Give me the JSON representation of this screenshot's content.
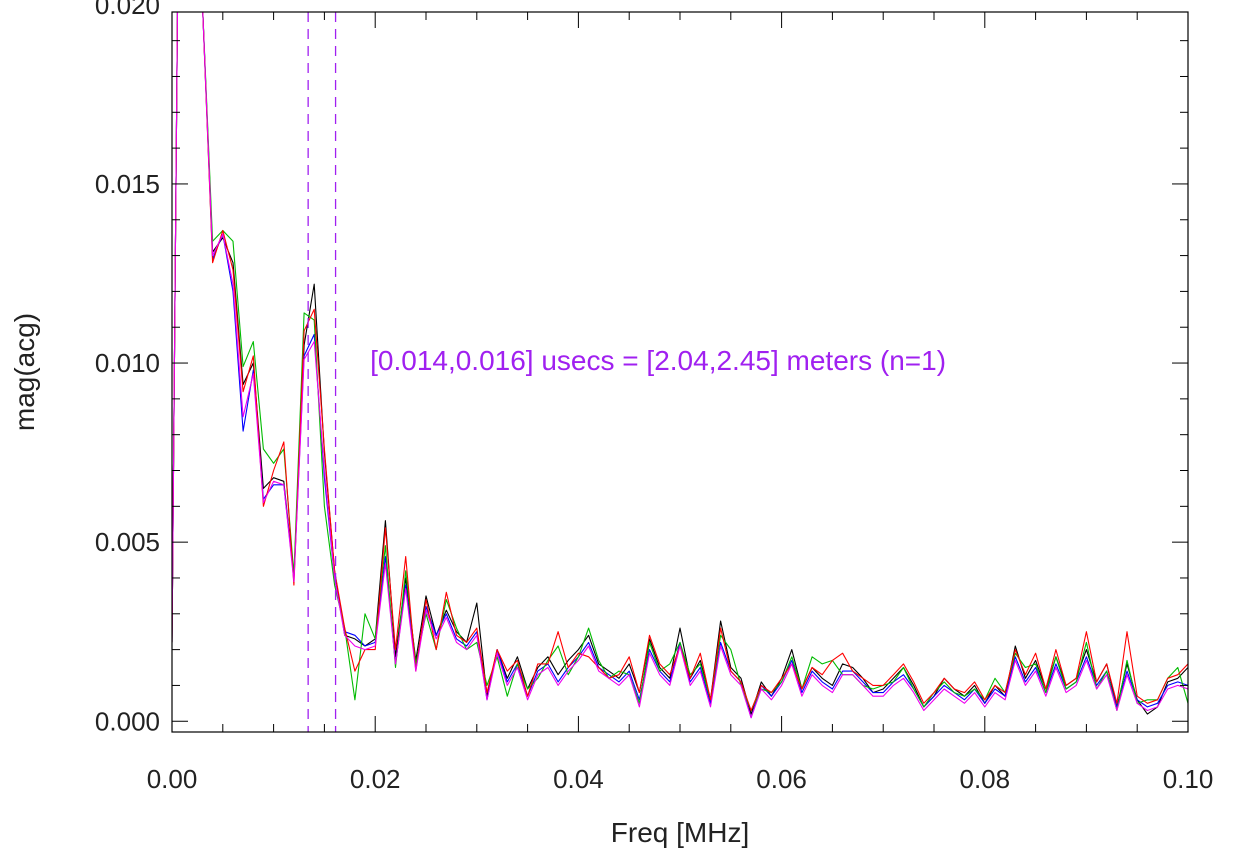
{
  "chart_data": {
    "type": "line",
    "title": "",
    "xlabel": "Freq [MHz]",
    "ylabel": "mag(acg)",
    "xlim": [
      0.0,
      0.1
    ],
    "ylim": [
      -0.0003,
      0.0198
    ],
    "x_ticks": [
      "0.00",
      "0.02",
      "0.04",
      "0.06",
      "0.08",
      "0.10"
    ],
    "y_ticks": [
      "0.000",
      "0.005",
      "0.010",
      "0.015",
      "0.020"
    ],
    "x_tick_values": [
      0.0,
      0.02,
      0.04,
      0.06,
      0.08,
      0.1
    ],
    "y_tick_values": [
      0.0,
      0.005,
      0.01,
      0.015,
      0.02
    ],
    "x_minor_step": 0.005,
    "y_minor_step": 0.001,
    "grid": false,
    "legend": "none",
    "annotation": {
      "text": "[0.014,0.016] usecs = [2.04,2.45] meters (n=1)",
      "color": "#a020f0",
      "x": 0.0195,
      "y": 0.0098
    },
    "vlines": [
      {
        "x": 0.0134,
        "color": "#a020f0",
        "style": "dashed"
      },
      {
        "x": 0.0161,
        "color": "#a020f0",
        "style": "dashed"
      }
    ],
    "x": [
      0.0,
      0.001,
      0.002,
      0.003,
      0.004,
      0.005,
      0.006,
      0.007,
      0.008,
      0.009,
      0.01,
      0.011,
      0.012,
      0.013,
      0.014,
      0.015,
      0.016,
      0.017,
      0.018,
      0.019,
      0.02,
      0.021,
      0.022,
      0.023,
      0.024,
      0.025,
      0.026,
      0.027,
      0.028,
      0.029,
      0.03,
      0.031,
      0.032,
      0.033,
      0.034,
      0.035,
      0.036,
      0.037,
      0.038,
      0.039,
      0.04,
      0.041,
      0.042,
      0.043,
      0.044,
      0.045,
      0.046,
      0.047,
      0.048,
      0.049,
      0.05,
      0.051,
      0.052,
      0.053,
      0.054,
      0.055,
      0.056,
      0.057,
      0.058,
      0.059,
      0.06,
      0.061,
      0.062,
      0.063,
      0.064,
      0.065,
      0.066,
      0.067,
      0.068,
      0.069,
      0.07,
      0.071,
      0.072,
      0.073,
      0.074,
      0.075,
      0.076,
      0.077,
      0.078,
      0.079,
      0.08,
      0.081,
      0.082,
      0.083,
      0.084,
      0.085,
      0.086,
      0.087,
      0.088,
      0.089,
      0.09,
      0.091,
      0.092,
      0.093,
      0.094,
      0.095,
      0.096,
      0.097,
      0.098,
      0.099,
      0.1
    ],
    "series": [
      {
        "color": "#000000",
        "values": [
          0.0022,
          0.035,
          0.026,
          0.02,
          0.0131,
          0.0135,
          0.0128,
          0.0094,
          0.01,
          0.0065,
          0.0068,
          0.0067,
          0.004,
          0.0105,
          0.0122,
          0.0075,
          0.0042,
          0.0024,
          0.0023,
          0.0021,
          0.0023,
          0.0056,
          0.0018,
          0.004,
          0.0017,
          0.0035,
          0.0024,
          0.0031,
          0.0025,
          0.0022,
          0.0033,
          0.0007,
          0.002,
          0.0012,
          0.0018,
          0.0009,
          0.0015,
          0.0018,
          0.0013,
          0.0017,
          0.002,
          0.0024,
          0.0016,
          0.0014,
          0.0012,
          0.0016,
          0.0008,
          0.0023,
          0.0015,
          0.0012,
          0.0026,
          0.0012,
          0.0017,
          0.0006,
          0.0028,
          0.0015,
          0.0012,
          0.0002,
          0.0011,
          0.0007,
          0.0012,
          0.002,
          0.0009,
          0.0015,
          0.0012,
          0.001,
          0.0016,
          0.0015,
          0.0012,
          0.0008,
          0.0009,
          0.0012,
          0.0015,
          0.001,
          0.0004,
          0.0007,
          0.0012,
          0.0009,
          0.0007,
          0.001,
          0.0005,
          0.001,
          0.0007,
          0.0021,
          0.0012,
          0.0017,
          0.0009,
          0.0018,
          0.001,
          0.0012,
          0.002,
          0.0011,
          0.0016,
          0.0004,
          0.0016,
          0.0006,
          0.0002,
          0.0004,
          0.0011,
          0.0012,
          0.0015
        ]
      },
      {
        "color": "#0000ff",
        "values": [
          0.0022,
          0.035,
          0.026,
          0.02,
          0.0129,
          0.0136,
          0.012,
          0.0081,
          0.0098,
          0.0062,
          0.0066,
          0.0066,
          0.004,
          0.0102,
          0.0108,
          0.0068,
          0.004,
          0.0025,
          0.0024,
          0.0021,
          0.0022,
          0.0046,
          0.0016,
          0.0038,
          0.0015,
          0.0032,
          0.0024,
          0.003,
          0.0023,
          0.0021,
          0.0025,
          0.0006,
          0.002,
          0.0011,
          0.0016,
          0.0007,
          0.0014,
          0.0016,
          0.0011,
          0.0015,
          0.0018,
          0.0022,
          0.0015,
          0.0013,
          0.0011,
          0.0014,
          0.0006,
          0.002,
          0.0014,
          0.0011,
          0.0022,
          0.0011,
          0.0015,
          0.0005,
          0.0022,
          0.0014,
          0.0011,
          0.0001,
          0.001,
          0.0007,
          0.0011,
          0.0017,
          0.0008,
          0.0014,
          0.0011,
          0.0009,
          0.0014,
          0.0014,
          0.0011,
          0.0008,
          0.0008,
          0.0011,
          0.0013,
          0.0009,
          0.0004,
          0.0007,
          0.001,
          0.0008,
          0.0006,
          0.0009,
          0.0005,
          0.0009,
          0.0007,
          0.0018,
          0.0011,
          0.0015,
          0.0008,
          0.0016,
          0.0009,
          0.0011,
          0.0018,
          0.001,
          0.0014,
          0.0004,
          0.0014,
          0.0006,
          0.0004,
          0.0005,
          0.001,
          0.0011,
          0.001
        ]
      },
      {
        "color": "#00bb00",
        "values": [
          0.0022,
          0.035,
          0.026,
          0.02,
          0.0134,
          0.0137,
          0.0134,
          0.0099,
          0.0106,
          0.0076,
          0.0072,
          0.0076,
          0.0041,
          0.0114,
          0.0112,
          0.006,
          0.0038,
          0.0026,
          0.0006,
          0.003,
          0.0023,
          0.0049,
          0.0015,
          0.0042,
          0.0016,
          0.003,
          0.002,
          0.0034,
          0.0026,
          0.002,
          0.0022,
          0.001,
          0.0018,
          0.0007,
          0.0016,
          0.0009,
          0.0012,
          0.0017,
          0.0021,
          0.0013,
          0.0018,
          0.0026,
          0.0017,
          0.0012,
          0.0014,
          0.0013,
          0.0005,
          0.0022,
          0.0014,
          0.0016,
          0.0022,
          0.0013,
          0.0016,
          0.0006,
          0.0024,
          0.002,
          0.001,
          0.0003,
          0.0009,
          0.0008,
          0.0011,
          0.0018,
          0.0009,
          0.0018,
          0.0016,
          0.0017,
          0.0013,
          0.0013,
          0.001,
          0.0009,
          0.001,
          0.0011,
          0.0015,
          0.0009,
          0.0004,
          0.0008,
          0.0011,
          0.0008,
          0.0007,
          0.0009,
          0.0006,
          0.0012,
          0.0008,
          0.0019,
          0.0015,
          0.0016,
          0.0008,
          0.0018,
          0.0009,
          0.0011,
          0.0022,
          0.0009,
          0.0014,
          0.0003,
          0.0017,
          0.0005,
          0.0006,
          0.0006,
          0.0012,
          0.0015,
          0.0005
        ]
      },
      {
        "color": "#ff0000",
        "values": [
          0.0022,
          0.035,
          0.026,
          0.02,
          0.0128,
          0.0137,
          0.0126,
          0.0092,
          0.0102,
          0.006,
          0.007,
          0.0078,
          0.0038,
          0.0109,
          0.0115,
          0.0076,
          0.0042,
          0.0026,
          0.0014,
          0.002,
          0.002,
          0.0054,
          0.002,
          0.0046,
          0.0014,
          0.0034,
          0.002,
          0.0036,
          0.0024,
          0.0022,
          0.0026,
          0.0008,
          0.002,
          0.0014,
          0.0017,
          0.0007,
          0.0016,
          0.0016,
          0.0025,
          0.0015,
          0.0019,
          0.0018,
          0.0015,
          0.0012,
          0.0013,
          0.0018,
          0.0008,
          0.0024,
          0.0016,
          0.0013,
          0.0021,
          0.0012,
          0.0019,
          0.0006,
          0.0026,
          0.0014,
          0.0011,
          0.0003,
          0.001,
          0.0008,
          0.0012,
          0.0016,
          0.0009,
          0.0015,
          0.0013,
          0.0017,
          0.0019,
          0.0014,
          0.0012,
          0.001,
          0.001,
          0.0013,
          0.0016,
          0.0011,
          0.0005,
          0.0008,
          0.0012,
          0.0009,
          0.0008,
          0.0011,
          0.0006,
          0.001,
          0.0008,
          0.002,
          0.0013,
          0.0019,
          0.0009,
          0.002,
          0.001,
          0.0012,
          0.0025,
          0.0011,
          0.0016,
          0.0005,
          0.0025,
          0.0007,
          0.0005,
          0.0006,
          0.0012,
          0.0013,
          0.0016
        ]
      },
      {
        "color": "#ee00ee",
        "values": [
          0.0022,
          0.035,
          0.026,
          0.02,
          0.013,
          0.0136,
          0.0122,
          0.0085,
          0.0097,
          0.0061,
          0.0067,
          0.0066,
          0.0039,
          0.0101,
          0.0106,
          0.007,
          0.004,
          0.0024,
          0.0021,
          0.002,
          0.0021,
          0.0044,
          0.0016,
          0.0037,
          0.0014,
          0.0031,
          0.0023,
          0.0029,
          0.0022,
          0.002,
          0.0024,
          0.0006,
          0.0019,
          0.001,
          0.0015,
          0.0006,
          0.0013,
          0.0015,
          0.001,
          0.0014,
          0.0017,
          0.0021,
          0.0014,
          0.0012,
          0.001,
          0.0013,
          0.0004,
          0.0019,
          0.0013,
          0.001,
          0.0021,
          0.001,
          0.0014,
          0.0004,
          0.0021,
          0.0013,
          0.001,
          0.0001,
          0.0009,
          0.0006,
          0.001,
          0.0016,
          0.0007,
          0.0013,
          0.001,
          0.0008,
          0.0013,
          0.0013,
          0.001,
          0.0007,
          0.0007,
          0.001,
          0.0012,
          0.0008,
          0.0003,
          0.0006,
          0.0009,
          0.0007,
          0.0005,
          0.0008,
          0.0004,
          0.0008,
          0.0006,
          0.0017,
          0.001,
          0.0014,
          0.0007,
          0.0015,
          0.0008,
          0.001,
          0.0017,
          0.0009,
          0.0013,
          0.0003,
          0.0013,
          0.0005,
          0.0003,
          0.0004,
          0.0009,
          0.001,
          0.0009
        ]
      }
    ]
  }
}
